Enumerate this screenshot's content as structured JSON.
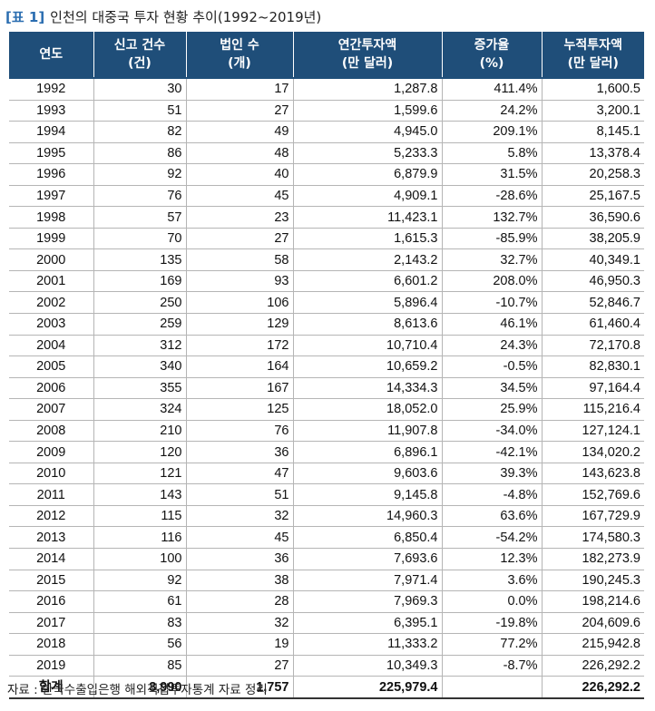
{
  "title": {
    "bracket": "[표 1]",
    "text": "인천의 대중국 투자 현황 추이(1992~2019년)"
  },
  "table": {
    "headers": [
      {
        "line1": "연도",
        "line2": ""
      },
      {
        "line1": "신고 건수",
        "line2": "(건)"
      },
      {
        "line1": "법인 수",
        "line2": "(개)"
      },
      {
        "line1": "연간투자액",
        "line2": "(만 달러)"
      },
      {
        "line1": "증가율",
        "line2": "(%)"
      },
      {
        "line1": "누적투자액",
        "line2": "(만 달러)"
      }
    ],
    "rows": [
      [
        "1992",
        "30",
        "17",
        "1,287.8",
        "411.4%",
        "1,600.5"
      ],
      [
        "1993",
        "51",
        "27",
        "1,599.6",
        "24.2%",
        "3,200.1"
      ],
      [
        "1994",
        "82",
        "49",
        "4,945.0",
        "209.1%",
        "8,145.1"
      ],
      [
        "1995",
        "86",
        "48",
        "5,233.3",
        "5.8%",
        "13,378.4"
      ],
      [
        "1996",
        "92",
        "40",
        "6,879.9",
        "31.5%",
        "20,258.3"
      ],
      [
        "1997",
        "76",
        "45",
        "4,909.1",
        "-28.6%",
        "25,167.5"
      ],
      [
        "1998",
        "57",
        "23",
        "11,423.1",
        "132.7%",
        "36,590.6"
      ],
      [
        "1999",
        "70",
        "27",
        "1,615.3",
        "-85.9%",
        "38,205.9"
      ],
      [
        "2000",
        "135",
        "58",
        "2,143.2",
        "32.7%",
        "40,349.1"
      ],
      [
        "2001",
        "169",
        "93",
        "6,601.2",
        "208.0%",
        "46,950.3"
      ],
      [
        "2002",
        "250",
        "106",
        "5,896.4",
        "-10.7%",
        "52,846.7"
      ],
      [
        "2003",
        "259",
        "129",
        "8,613.6",
        "46.1%",
        "61,460.4"
      ],
      [
        "2004",
        "312",
        "172",
        "10,710.4",
        "24.3%",
        "72,170.8"
      ],
      [
        "2005",
        "340",
        "164",
        "10,659.2",
        "-0.5%",
        "82,830.1"
      ],
      [
        "2006",
        "355",
        "167",
        "14,334.3",
        "34.5%",
        "97,164.4"
      ],
      [
        "2007",
        "324",
        "125",
        "18,052.0",
        "25.9%",
        "115,216.4"
      ],
      [
        "2008",
        "210",
        "76",
        "11,907.8",
        "-34.0%",
        "127,124.1"
      ],
      [
        "2009",
        "120",
        "36",
        "6,896.1",
        "-42.1%",
        "134,020.2"
      ],
      [
        "2010",
        "121",
        "47",
        "9,603.6",
        "39.3%",
        "143,623.8"
      ],
      [
        "2011",
        "143",
        "51",
        "9,145.8",
        "-4.8%",
        "152,769.6"
      ],
      [
        "2012",
        "115",
        "32",
        "14,960.3",
        "63.6%",
        "167,729.9"
      ],
      [
        "2013",
        "116",
        "45",
        "6,850.4",
        "-54.2%",
        "174,580.3"
      ],
      [
        "2014",
        "100",
        "36",
        "7,693.6",
        "12.3%",
        "182,273.9"
      ],
      [
        "2015",
        "92",
        "38",
        "7,971.4",
        "3.6%",
        "190,245.3"
      ],
      [
        "2016",
        "61",
        "28",
        "7,969.3",
        "0.0%",
        "198,214.6"
      ],
      [
        "2017",
        "83",
        "32",
        "6,395.1",
        "-19.8%",
        "204,609.6"
      ],
      [
        "2018",
        "56",
        "19",
        "11,333.2",
        "77.2%",
        "215,942.8"
      ],
      [
        "2019",
        "85",
        "27",
        "10,349.3",
        "-8.7%",
        "226,292.2"
      ]
    ],
    "total": [
      "합계",
      "3,990",
      "1,757",
      "225,979.4",
      "",
      "226,292.2"
    ]
  },
  "source": "자료 : 한국수출입은행 해외직접투자통계 자료 정리",
  "colors": {
    "header_bg": "#1f4e79",
    "title_accent": "#2a6db0"
  }
}
